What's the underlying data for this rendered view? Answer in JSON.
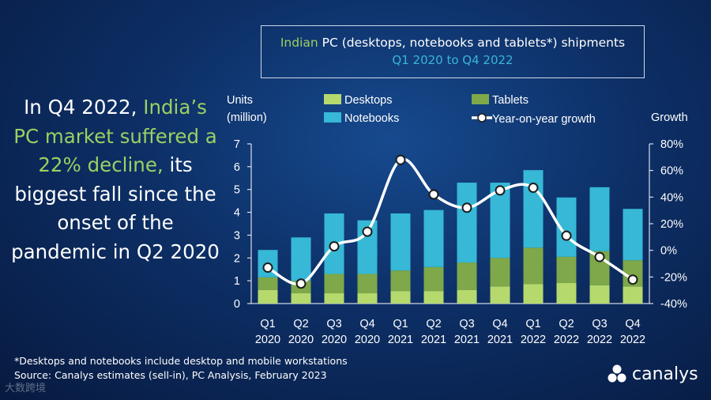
{
  "headline": {
    "part1": "In Q4 2022, ",
    "part2_highlight": "India’s PC market suffered a 22% decline,",
    "part3": " its biggest fall since the onset of the pandemic in Q2 2020"
  },
  "title": {
    "line1_highlight": "Indian",
    "line1_rest": " PC (desktops, notebooks and tablets*) shipments",
    "line2": "Q1 2020 to Q4 2022"
  },
  "footnote": {
    "line1": "*Desktops and notebooks include desktop and mobile workstations",
    "line2": "Source: Canalys estimates (sell-in), PC Analysis, February 2023"
  },
  "logo_text": "canalys",
  "watermark": "大数跨境",
  "colors": {
    "desktops": "#b5d96d",
    "tablets": "#7ea84a",
    "notebooks": "#36b8d6",
    "growth": "#ffffff",
    "title_accent": "#39b4d9",
    "headline_accent": "#9bd062"
  },
  "chart_data": {
    "type": "bar",
    "stacked": true,
    "categories": [
      [
        "Q1",
        "2020"
      ],
      [
        "Q2",
        "2020"
      ],
      [
        "Q3",
        "2020"
      ],
      [
        "Q4",
        "2020"
      ],
      [
        "Q1",
        "2021"
      ],
      [
        "Q2",
        "2021"
      ],
      [
        "Q3",
        "2021"
      ],
      [
        "Q4",
        "2021"
      ],
      [
        "Q1",
        "2022"
      ],
      [
        "Q2",
        "2022"
      ],
      [
        "Q3",
        "2022"
      ],
      [
        "Q4",
        "2022"
      ]
    ],
    "series": [
      {
        "name": "Desktops",
        "color_key": "desktops",
        "values": [
          0.6,
          0.45,
          0.45,
          0.45,
          0.55,
          0.55,
          0.6,
          0.75,
          0.85,
          0.9,
          0.8,
          0.75
        ]
      },
      {
        "name": "Tablets",
        "color_key": "tablets",
        "values": [
          0.55,
          0.55,
          0.85,
          0.85,
          0.9,
          1.05,
          1.2,
          1.25,
          1.6,
          1.15,
          1.5,
          1.15
        ]
      },
      {
        "name": "Notebooks",
        "color_key": "notebooks",
        "values": [
          1.2,
          1.9,
          2.65,
          2.35,
          2.5,
          2.5,
          3.5,
          3.3,
          3.4,
          2.6,
          2.8,
          2.25
        ]
      }
    ],
    "line_series": {
      "name": "Year-on-year growth",
      "color_key": "growth",
      "values": [
        -13,
        -25,
        3,
        14,
        68,
        42,
        32,
        45,
        47,
        11,
        -5,
        -22
      ]
    },
    "y_left": {
      "label_line1": "Units",
      "label_line2": "(million)",
      "min": 0,
      "max": 7,
      "ticks": [
        "0",
        "1",
        "2",
        "3",
        "4",
        "5",
        "6",
        "7"
      ]
    },
    "y_right": {
      "label": "Growth",
      "min": -40,
      "max": 80,
      "ticks": [
        "-40%",
        "-20%",
        "0%",
        "20%",
        "40%",
        "60%",
        "80%"
      ]
    },
    "legend": [
      "Desktops",
      "Tablets",
      "Notebooks",
      "Year-on-year growth"
    ],
    "legend_position": "top"
  }
}
